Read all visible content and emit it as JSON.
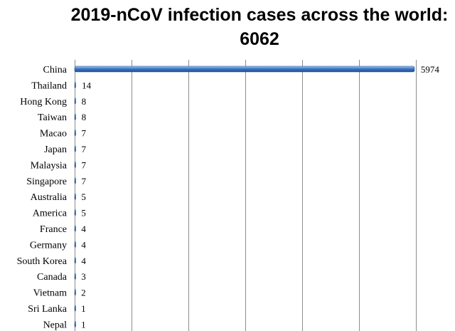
{
  "chart_data": {
    "type": "bar",
    "orientation": "horizontal",
    "title": "2019-nCoV infection cases across the world: 6062",
    "xlabel": "",
    "ylabel": "",
    "categories": [
      "China",
      "Thailand",
      "Hong Kong",
      "Taiwan",
      "Macao",
      "Japan",
      "Malaysia",
      "Singapore",
      "Australia",
      "America",
      "France",
      "Germany",
      "South Korea",
      "Canada",
      "Vietnam",
      "Sri Lanka",
      "Nepal"
    ],
    "values": [
      5974,
      14,
      8,
      8,
      7,
      7,
      7,
      7,
      5,
      5,
      4,
      4,
      4,
      3,
      2,
      1,
      1
    ],
    "xlim": [
      0,
      6000
    ],
    "grid": true,
    "data_labels": true,
    "legend": "none",
    "bar_color": "#3d78c4",
    "bar_edge_color": "#1f4e8c"
  }
}
